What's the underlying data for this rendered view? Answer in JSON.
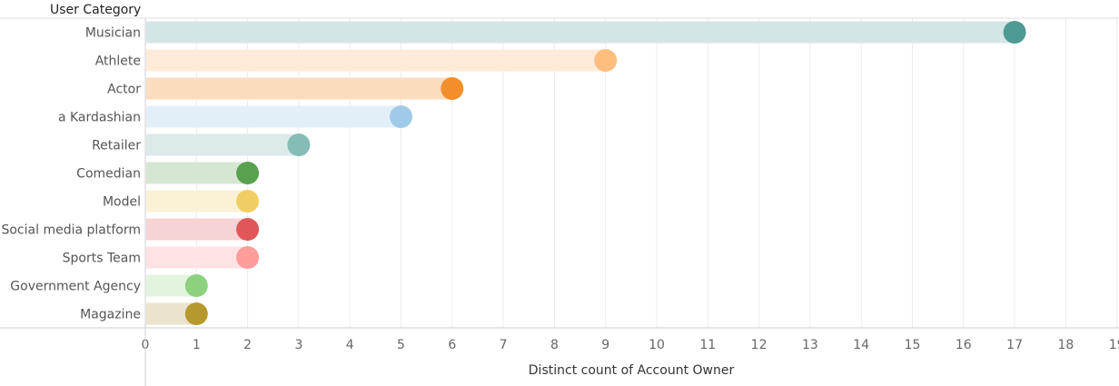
{
  "chart_data": {
    "type": "bar",
    "row_header": "User Category",
    "xlabel": "Distinct count of Account Owner",
    "xlim": [
      0,
      19
    ],
    "xticks": [
      0,
      1,
      2,
      3,
      4,
      5,
      6,
      7,
      8,
      9,
      10,
      11,
      12,
      13,
      14,
      15,
      16,
      17,
      18,
      19
    ],
    "grid": true,
    "categories": [
      "Musician",
      "Athlete",
      "Actor",
      "a Kardashian",
      "Retailer",
      "Comedian",
      "Model",
      "Social media platform",
      "Sports Team",
      "Government Agency",
      "Magazine"
    ],
    "values": [
      17,
      9,
      6,
      5,
      3,
      2,
      2,
      2,
      2,
      1,
      1
    ],
    "dot_colors": [
      "#4e9a94",
      "#ffbd7f",
      "#f28e2b",
      "#a0cbe8",
      "#86bcb6",
      "#59a14f",
      "#f1ce63",
      "#e15759",
      "#ff9d9a",
      "#8cd17d",
      "#b6992d"
    ],
    "bar_colors": [
      "#d3e6e5",
      "#ffebd8",
      "#fbdcbf",
      "#e3eff8",
      "#dcebe9",
      "#d5e7d2",
      "#fbf1d5",
      "#f6d3d4",
      "#ffe2e1",
      "#e2f4de",
      "#ebe3cd"
    ]
  }
}
